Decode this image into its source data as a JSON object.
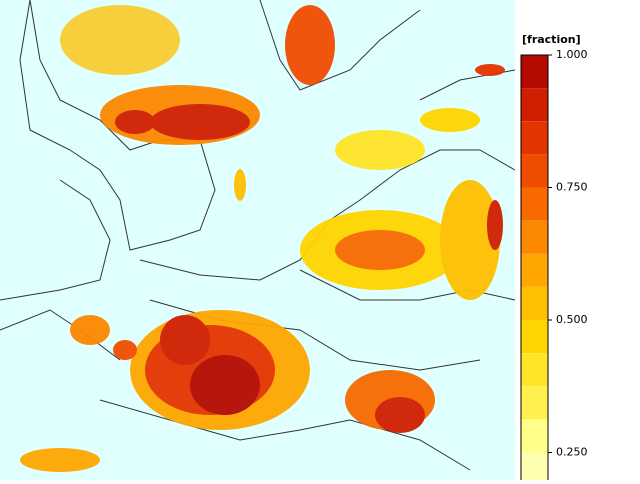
{
  "colorbar": {
    "title": "[fraction]",
    "lim": [
      0.1875,
      1.0
    ],
    "ticks": [
      {
        "value": 1.0,
        "label": "1.000"
      },
      {
        "value": 0.75,
        "label": "0.750"
      },
      {
        "value": 0.5,
        "label": "0.500"
      },
      {
        "value": 0.25,
        "label": "0.250"
      }
    ],
    "colors": [
      "#b40a00",
      "#d01e00",
      "#e43400",
      "#f04c00",
      "#f86a00",
      "#fc8800",
      "#ffa600",
      "#ffc000",
      "#ffd400",
      "#ffe428",
      "#fff050",
      "#ffff88",
      "#ffffb0"
    ]
  }
}
